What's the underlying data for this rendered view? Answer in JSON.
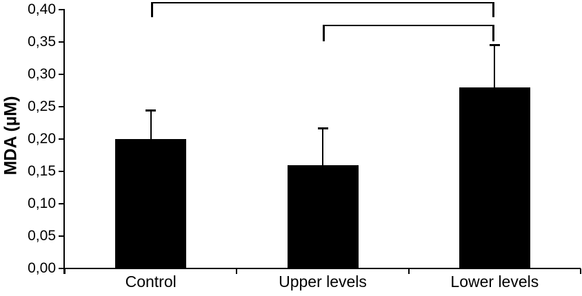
{
  "chart_data": {
    "type": "bar",
    "title": "",
    "xlabel": "",
    "ylabel": "MDA (µM)",
    "categories": [
      "Control",
      "Upper levels",
      "Lower levels"
    ],
    "series": [
      {
        "name": "MDA",
        "values": [
          0.2,
          0.16,
          0.28
        ],
        "errors_upper": [
          0.045,
          0.057,
          0.066
        ]
      }
    ],
    "ylim": [
      0.0,
      0.4
    ],
    "ytick_step": 0.05,
    "decimal_separator": ",",
    "yticks": [
      {
        "value": 0.0,
        "label": "0,00"
      },
      {
        "value": 0.05,
        "label": "0,05"
      },
      {
        "value": 0.1,
        "label": "0,10"
      },
      {
        "value": 0.15,
        "label": "0,15"
      },
      {
        "value": 0.2,
        "label": "0,20"
      },
      {
        "value": 0.25,
        "label": "0,25"
      },
      {
        "value": 0.3,
        "label": "0,30"
      },
      {
        "value": 0.35,
        "label": "0,35"
      },
      {
        "value": 0.4,
        "label": "0,40"
      }
    ],
    "grid": false,
    "legend": "none",
    "bar_color": "#000000",
    "axis_color": "#000000",
    "background_color": "#ffffff",
    "significance_brackets": [
      {
        "from": "Control",
        "to": "Lower levels"
      },
      {
        "from": "Upper levels",
        "to": "Lower levels"
      }
    ]
  }
}
